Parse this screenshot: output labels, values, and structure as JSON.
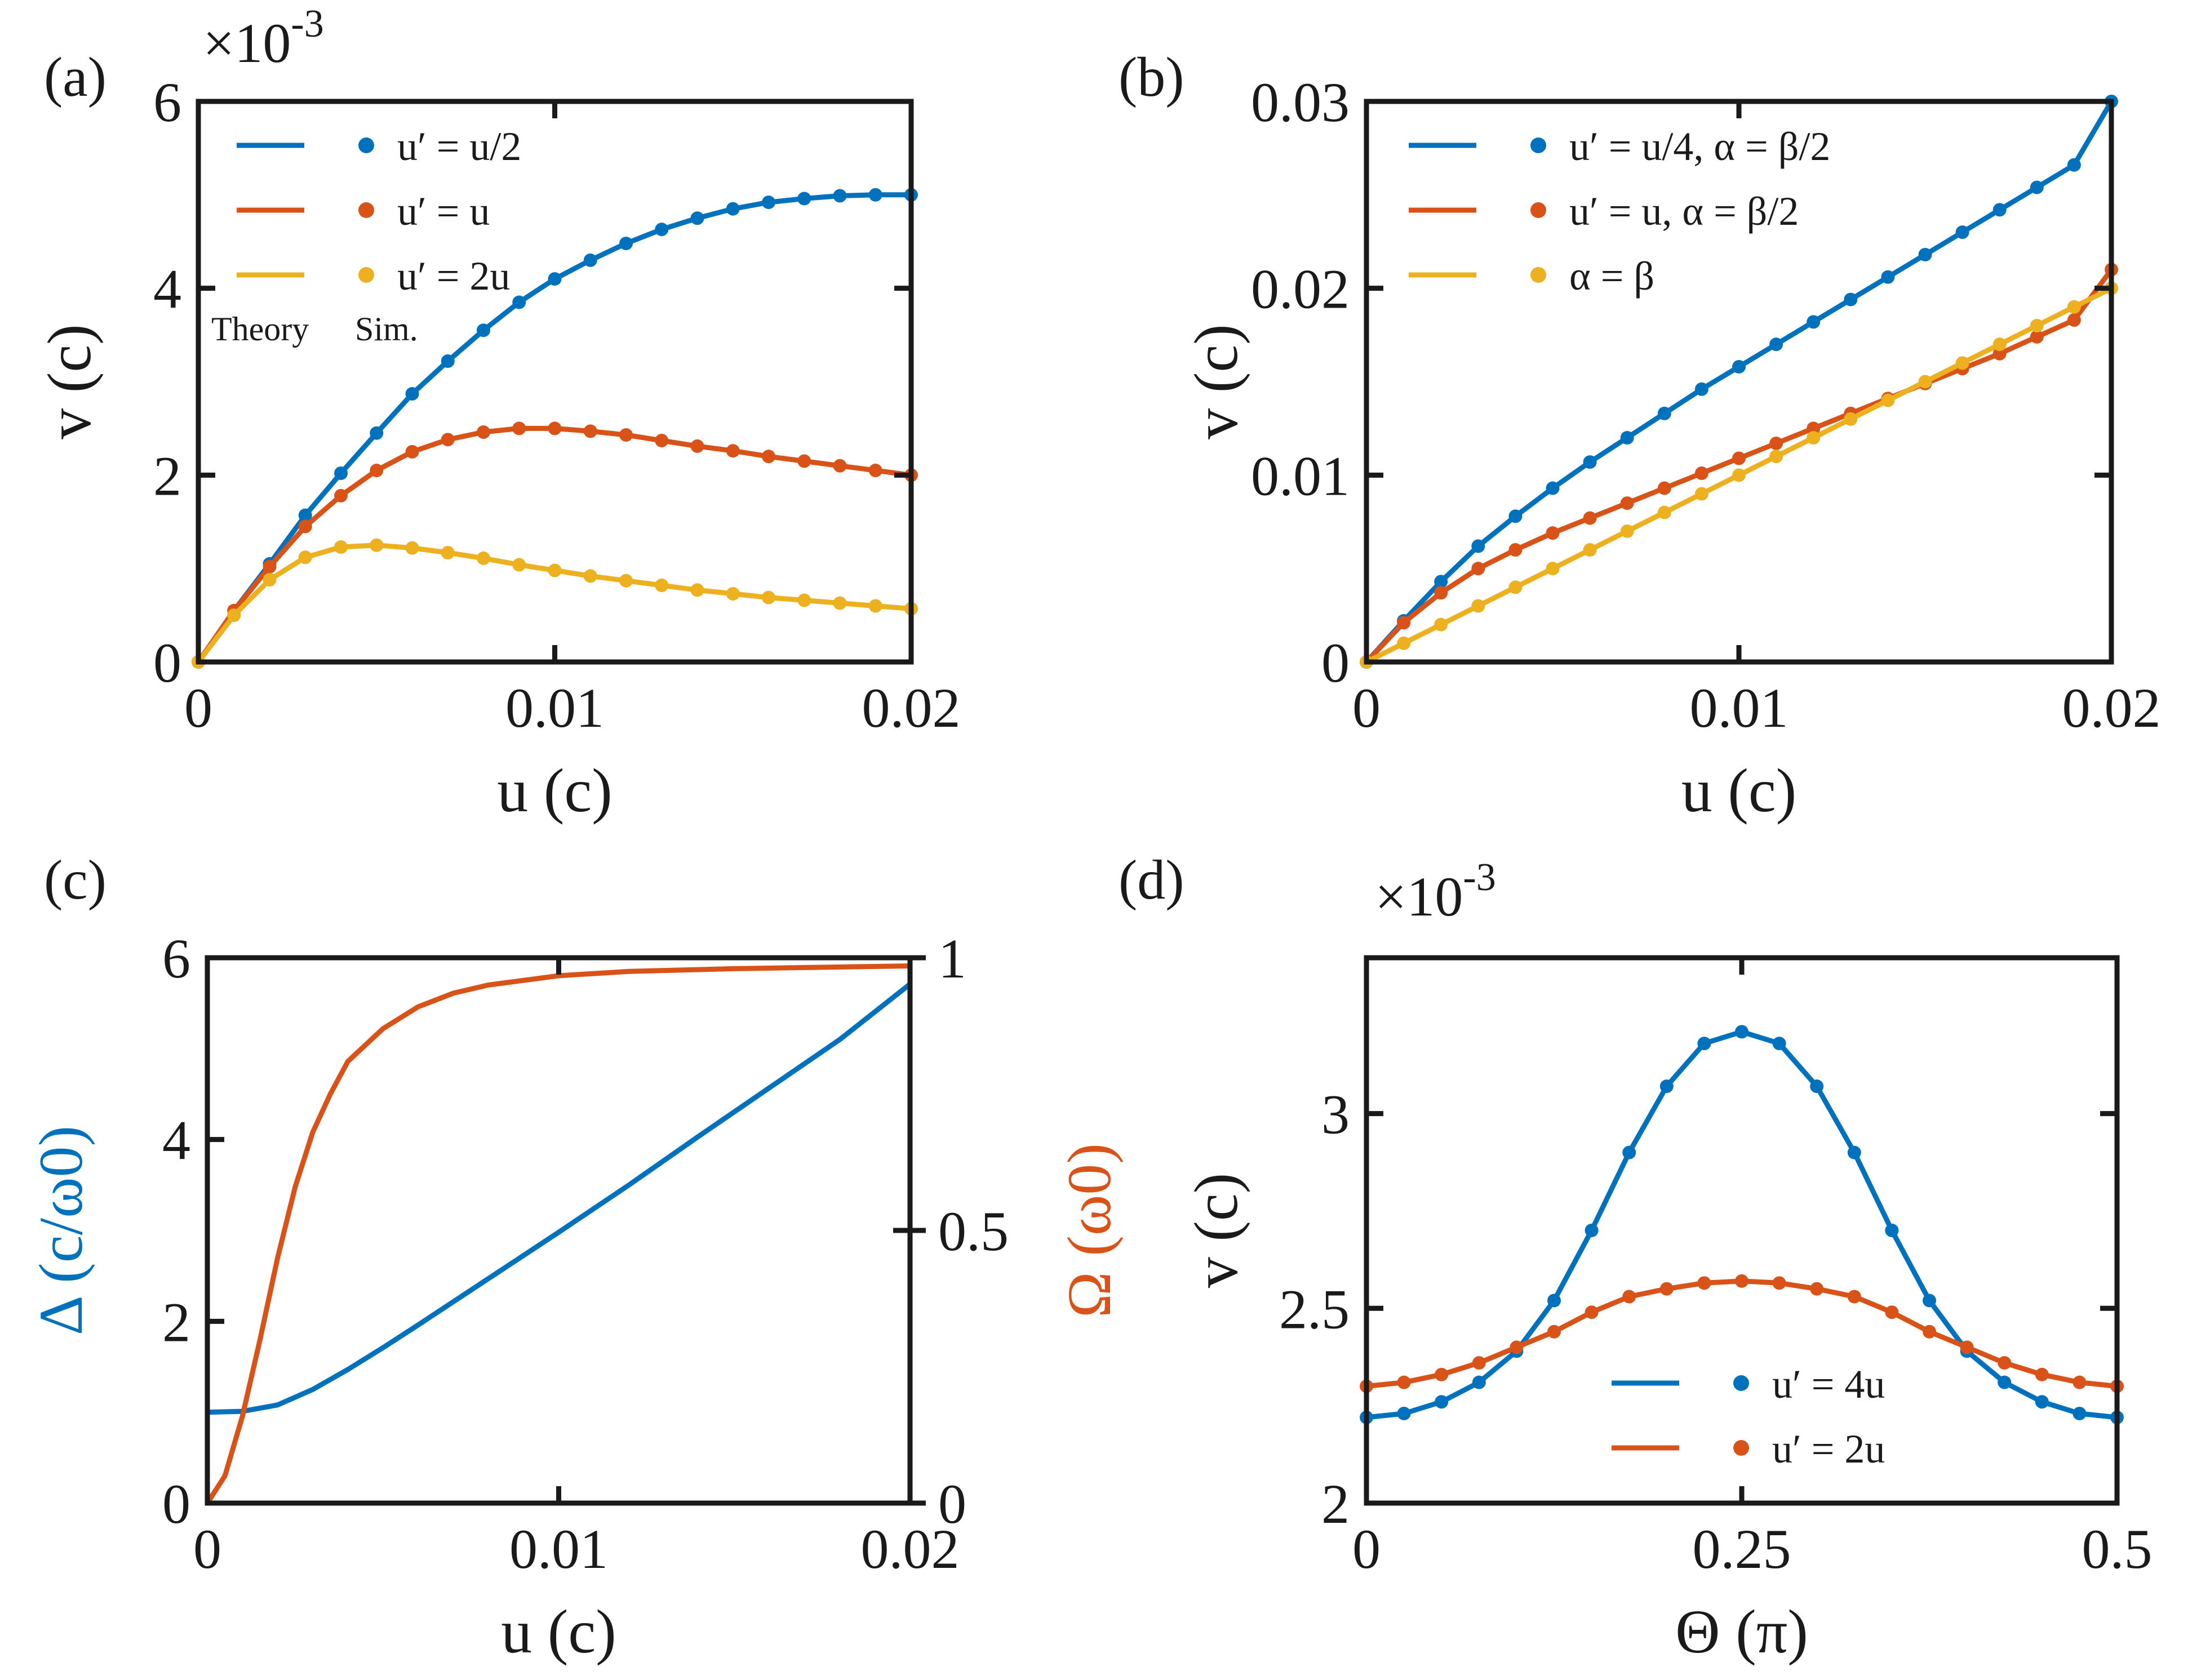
{
  "colors": {
    "blue": "#0072BD",
    "red": "#D95319",
    "yellow": "#EDB120",
    "axis": "#1a1a1a"
  },
  "chart_data": [
    {
      "id": "a",
      "panel_label": "(a)",
      "type": "line",
      "xlabel": "u (c)",
      "ylabel": "v (c)",
      "xlim": [
        0,
        0.02
      ],
      "ylim": [
        0,
        6
      ],
      "xticks": [
        0,
        0.01,
        0.02
      ],
      "xtick_labels": [
        "0",
        "0.01",
        "0.02"
      ],
      "yticks": [
        0,
        2,
        4,
        6
      ],
      "ytick_labels": [
        "0",
        "2",
        "4",
        "6"
      ],
      "multiplier": {
        "base": "×10",
        "exp": "-3"
      },
      "legend": {
        "position": "top-left",
        "col_headers": [
          "Theory",
          "Sim."
        ]
      },
      "series": [
        {
          "name": "u′ = u/2",
          "color": "blue",
          "x": [
            0,
            0.001,
            0.002,
            0.003,
            0.004,
            0.005,
            0.006,
            0.007,
            0.008,
            0.009,
            0.01,
            0.011,
            0.012,
            0.013,
            0.014,
            0.015,
            0.016,
            0.017,
            0.018,
            0.019,
            0.02
          ],
          "y": [
            0,
            0.55,
            1.05,
            1.57,
            2.02,
            2.45,
            2.87,
            3.22,
            3.55,
            3.85,
            4.1,
            4.3,
            4.48,
            4.63,
            4.75,
            4.85,
            4.92,
            4.96,
            4.99,
            5.0,
            5.0
          ]
        },
        {
          "name": "u′ = u",
          "color": "red",
          "x": [
            0,
            0.001,
            0.002,
            0.003,
            0.004,
            0.005,
            0.006,
            0.007,
            0.008,
            0.009,
            0.01,
            0.011,
            0.012,
            0.013,
            0.014,
            0.015,
            0.016,
            0.017,
            0.018,
            0.019,
            0.02
          ],
          "y": [
            0,
            0.55,
            1.02,
            1.45,
            1.78,
            2.05,
            2.25,
            2.38,
            2.46,
            2.5,
            2.5,
            2.47,
            2.43,
            2.37,
            2.31,
            2.26,
            2.2,
            2.15,
            2.1,
            2.05,
            2.0
          ]
        },
        {
          "name": "u′ = 2u",
          "color": "yellow",
          "x": [
            0,
            0.001,
            0.002,
            0.003,
            0.004,
            0.005,
            0.006,
            0.007,
            0.008,
            0.009,
            0.01,
            0.011,
            0.012,
            0.013,
            0.014,
            0.015,
            0.016,
            0.017,
            0.018,
            0.019,
            0.02
          ],
          "y": [
            0,
            0.5,
            0.88,
            1.12,
            1.23,
            1.25,
            1.22,
            1.17,
            1.11,
            1.04,
            0.98,
            0.92,
            0.87,
            0.82,
            0.77,
            0.73,
            0.69,
            0.66,
            0.63,
            0.6,
            0.57
          ]
        }
      ]
    },
    {
      "id": "b",
      "panel_label": "(b)",
      "type": "line",
      "xlabel": "u (c)",
      "ylabel": "v (c)",
      "xlim": [
        0,
        0.02
      ],
      "ylim": [
        0,
        0.03
      ],
      "xticks": [
        0,
        0.01,
        0.02
      ],
      "xtick_labels": [
        "0",
        "0.01",
        "0.02"
      ],
      "yticks": [
        0,
        0.01,
        0.02,
        0.03
      ],
      "ytick_labels": [
        "0",
        "0.01",
        "0.02",
        "0.03"
      ],
      "legend": {
        "position": "top-left"
      },
      "series": [
        {
          "name": "u′ = u/4, α = β/2",
          "color": "blue",
          "x": [
            0,
            0.001,
            0.002,
            0.003,
            0.004,
            0.005,
            0.006,
            0.007,
            0.008,
            0.009,
            0.01,
            0.011,
            0.012,
            0.013,
            0.014,
            0.015,
            0.016,
            0.017,
            0.018,
            0.019,
            0.02
          ],
          "y": [
            0,
            0.0022,
            0.0043,
            0.0062,
            0.0078,
            0.0093,
            0.0107,
            0.012,
            0.0133,
            0.0146,
            0.0158,
            0.017,
            0.0182,
            0.0194,
            0.0206,
            0.0218,
            0.023,
            0.0242,
            0.0254,
            0.0266,
            0.03
          ]
        },
        {
          "name": "u′ = u, α = β/2",
          "color": "red",
          "x": [
            0,
            0.001,
            0.002,
            0.003,
            0.004,
            0.005,
            0.006,
            0.007,
            0.008,
            0.009,
            0.01,
            0.011,
            0.012,
            0.013,
            0.014,
            0.015,
            0.016,
            0.017,
            0.018,
            0.019,
            0.02
          ],
          "y": [
            0,
            0.0021,
            0.0037,
            0.005,
            0.006,
            0.0069,
            0.0077,
            0.0085,
            0.0093,
            0.0101,
            0.0109,
            0.0117,
            0.0125,
            0.0133,
            0.0141,
            0.0149,
            0.0157,
            0.0165,
            0.0174,
            0.0183,
            0.021
          ]
        },
        {
          "name": "α = β",
          "color": "yellow",
          "x": [
            0,
            0.001,
            0.002,
            0.003,
            0.004,
            0.005,
            0.006,
            0.007,
            0.008,
            0.009,
            0.01,
            0.011,
            0.012,
            0.013,
            0.014,
            0.015,
            0.016,
            0.017,
            0.018,
            0.019,
            0.02
          ],
          "y": [
            0,
            0.001,
            0.002,
            0.003,
            0.004,
            0.005,
            0.006,
            0.007,
            0.008,
            0.009,
            0.01,
            0.011,
            0.012,
            0.013,
            0.014,
            0.015,
            0.016,
            0.017,
            0.018,
            0.019,
            0.02
          ]
        }
      ]
    },
    {
      "id": "c",
      "panel_label": "(c)",
      "type": "line",
      "xlabel": "u (c)",
      "ylabel": "Δ (c/ω0)",
      "ylabel_right": "Ω (ω0)",
      "xlim": [
        0,
        0.02
      ],
      "ylim": [
        0,
        6
      ],
      "ylim_right": [
        0,
        1
      ],
      "xticks": [
        0,
        0.01,
        0.02
      ],
      "xtick_labels": [
        "0",
        "0.01",
        "0.02"
      ],
      "yticks": [
        0,
        2,
        4,
        6
      ],
      "ytick_labels": [
        "0",
        "2",
        "4",
        "6"
      ],
      "yticks_right": [
        0,
        0.5,
        1
      ],
      "ytick_labels_right": [
        "0",
        "0.5",
        "1"
      ],
      "series": [
        {
          "name": "Δ",
          "color": "blue",
          "axis": "left",
          "x": [
            0,
            0.001,
            0.002,
            0.003,
            0.004,
            0.005,
            0.006,
            0.008,
            0.01,
            0.012,
            0.014,
            0.016,
            0.018,
            0.02
          ],
          "y": [
            1.0,
            1.01,
            1.08,
            1.25,
            1.47,
            1.71,
            1.96,
            2.47,
            2.98,
            3.5,
            4.04,
            4.57,
            5.1,
            5.71
          ]
        },
        {
          "name": "Ω",
          "color": "red",
          "axis": "right",
          "x": [
            0,
            0.0005,
            0.001,
            0.0015,
            0.002,
            0.0025,
            0.003,
            0.0035,
            0.004,
            0.005,
            0.006,
            0.007,
            0.008,
            0.01,
            0.012,
            0.015,
            0.02
          ],
          "y": [
            0,
            0.05,
            0.16,
            0.3,
            0.45,
            0.58,
            0.68,
            0.75,
            0.81,
            0.87,
            0.91,
            0.935,
            0.95,
            0.967,
            0.975,
            0.98,
            0.985
          ]
        }
      ]
    },
    {
      "id": "d",
      "panel_label": "(d)",
      "type": "line",
      "xlabel": "Θ (π)",
      "ylabel": "v (c)",
      "xlim": [
        0,
        0.5
      ],
      "ylim": [
        2,
        3.4
      ],
      "xticks": [
        0,
        0.25,
        0.5
      ],
      "xtick_labels": [
        "0",
        "0.25",
        "0.5"
      ],
      "yticks": [
        2,
        2.5,
        3
      ],
      "ytick_labels": [
        "2",
        "2.5",
        "3"
      ],
      "multiplier": {
        "base": "×10",
        "exp": "-3"
      },
      "legend": {
        "position": "bottom-center"
      },
      "series": [
        {
          "name": "u′ = 4u",
          "color": "blue",
          "x": [
            0,
            0.025,
            0.05,
            0.075,
            0.1,
            0.125,
            0.15,
            0.175,
            0.2,
            0.225,
            0.25,
            0.275,
            0.3,
            0.325,
            0.35,
            0.375,
            0.4,
            0.425,
            0.45,
            0.475,
            0.5
          ],
          "y": [
            2.22,
            2.23,
            2.26,
            2.31,
            2.39,
            2.52,
            2.7,
            2.9,
            3.07,
            3.18,
            3.21,
            3.18,
            3.07,
            2.9,
            2.7,
            2.52,
            2.39,
            2.31,
            2.26,
            2.23,
            2.22
          ]
        },
        {
          "name": "u′ = 2u",
          "color": "red",
          "x": [
            0,
            0.025,
            0.05,
            0.075,
            0.1,
            0.125,
            0.15,
            0.175,
            0.2,
            0.225,
            0.25,
            0.275,
            0.3,
            0.325,
            0.35,
            0.375,
            0.4,
            0.425,
            0.45,
            0.475,
            0.5
          ],
          "y": [
            2.3,
            2.31,
            2.33,
            2.36,
            2.4,
            2.44,
            2.49,
            2.53,
            2.55,
            2.565,
            2.57,
            2.565,
            2.55,
            2.53,
            2.49,
            2.44,
            2.4,
            2.36,
            2.33,
            2.31,
            2.3
          ]
        }
      ]
    }
  ]
}
